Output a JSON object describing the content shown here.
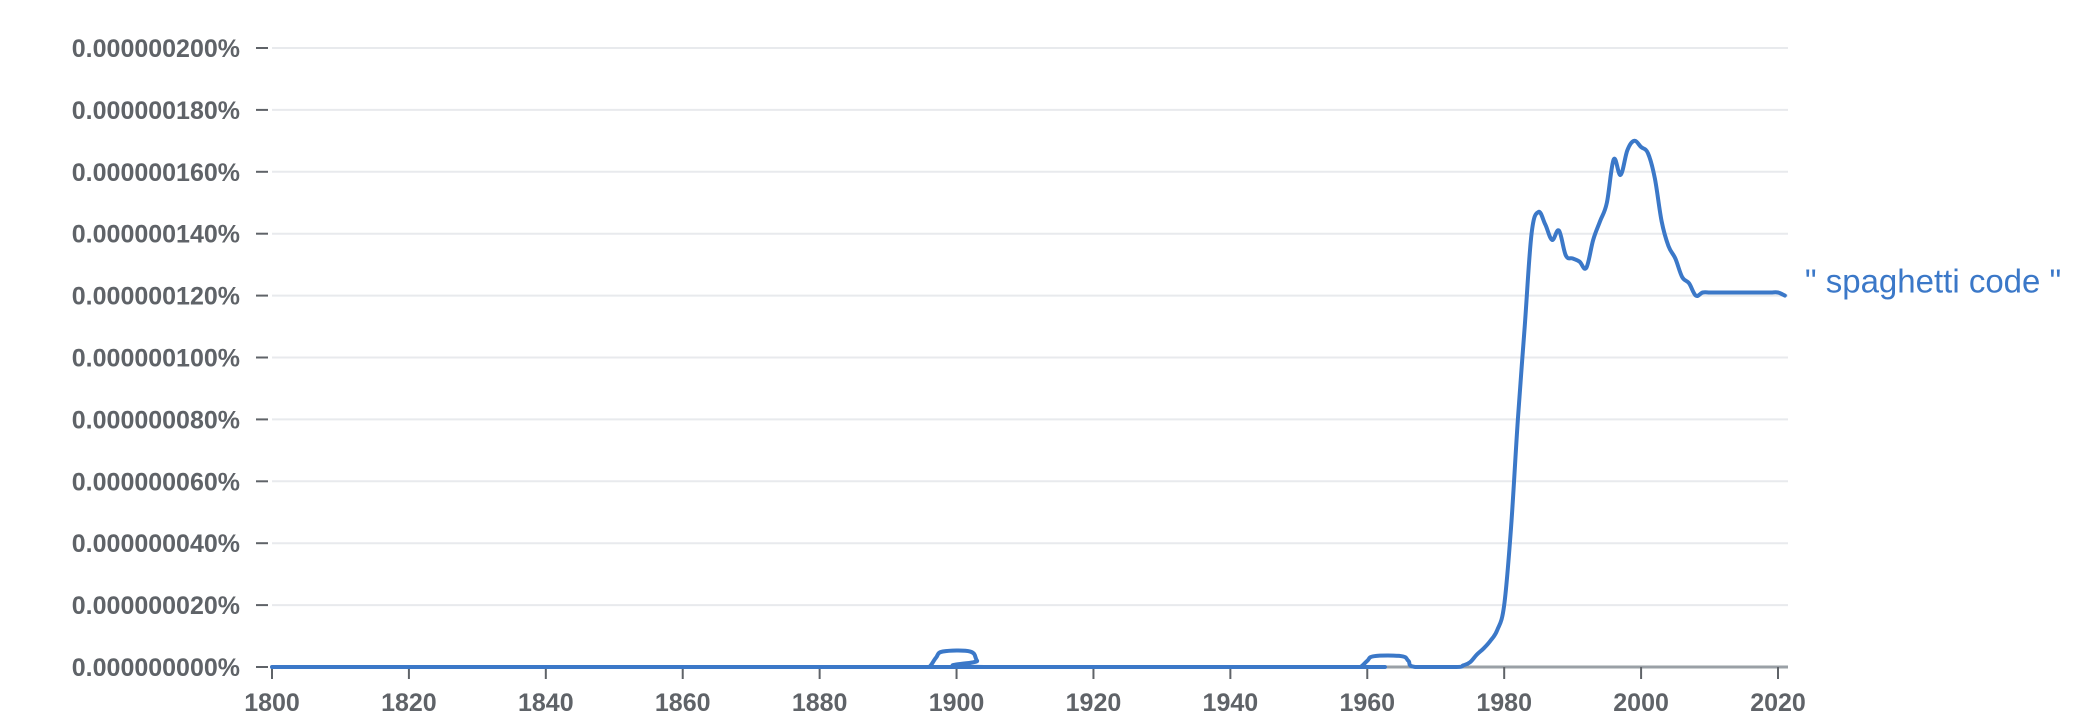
{
  "chart_data": {
    "type": "line",
    "title": "",
    "xlabel": "",
    "ylabel": "",
    "xlim": [
      1800,
      2022
    ],
    "ylim": [
      0,
      2e-07
    ],
    "x_ticks": [
      1800,
      1820,
      1840,
      1860,
      1880,
      1900,
      1920,
      1940,
      1960,
      1980,
      2000,
      2020
    ],
    "x_tick_labels": [
      "1800",
      "1820",
      "1840",
      "1860",
      "1880",
      "1900",
      "1920",
      "1940",
      "1960",
      "1980",
      "2000",
      "2020"
    ],
    "y_ticks": [
      0,
      2e-08,
      4e-08,
      6e-08,
      8e-08,
      1e-07,
      1.2e-07,
      1.4e-07,
      1.6e-07,
      1.8e-07,
      2e-07
    ],
    "y_tick_labels": [
      "0.000000000%",
      "0.000000020%",
      "0.000000040%",
      "0.000000060%",
      "0.000000080%",
      "0.000000100%",
      "0.000000120%",
      "0.000000140%",
      "0.000000160%",
      "0.000000180%",
      "0.000000200%"
    ],
    "grid": true,
    "series": [
      {
        "name": "\" spaghetti code \"",
        "color": "#3b78c8",
        "x": [
          1800,
          1895,
          1896,
          1897,
          1898,
          1902,
          1903,
          1904,
          1958,
          1959,
          1960,
          1961,
          1965,
          1966,
          1967,
          1973,
          1974,
          1975,
          1976,
          1977,
          1978,
          1979,
          1980,
          1981,
          1982,
          1983,
          1984,
          1985,
          1986,
          1987,
          1988,
          1989,
          1990,
          1991,
          1992,
          1993,
          1994,
          1995,
          1996,
          1997,
          1998,
          1999,
          2000,
          2001,
          2002,
          2003,
          2004,
          2005,
          2006,
          2007,
          2008,
          2009,
          2010,
          2011,
          2012,
          2013,
          2014,
          2015,
          2016,
          2017,
          2018,
          2019,
          2020,
          2021
        ],
        "y": [
          0.0,
          0.0,
          0.0,
          3e-09,
          5e-09,
          5e-09,
          2e-09,
          0.0,
          0.0,
          0.0,
          2e-09,
          3.5e-09,
          3.5e-09,
          2e-09,
          0.0,
          0.0,
          5e-10,
          1.5e-09,
          4e-09,
          6e-09,
          8.5e-09,
          1.2e-08,
          2e-08,
          4.5e-08,
          8e-08,
          1.1e-07,
          1.4e-07,
          1.47e-07,
          1.43e-07,
          1.38e-07,
          1.41e-07,
          1.33e-07,
          1.32e-07,
          1.31e-07,
          1.29e-07,
          1.38e-07,
          1.44e-07,
          1.5e-07,
          1.64e-07,
          1.59e-07,
          1.67e-07,
          1.7e-07,
          1.68e-07,
          1.66e-07,
          1.58e-07,
          1.44e-07,
          1.36e-07,
          1.32e-07,
          1.26e-07,
          1.24e-07,
          1.2e-07,
          1.21e-07,
          1.21e-07,
          1.21e-07,
          1.21e-07,
          1.21e-07,
          1.21e-07,
          1.21e-07,
          1.21e-07,
          1.21e-07,
          1.21e-07,
          1.21e-07,
          1.21e-07,
          1.2e-07
        ]
      }
    ]
  }
}
